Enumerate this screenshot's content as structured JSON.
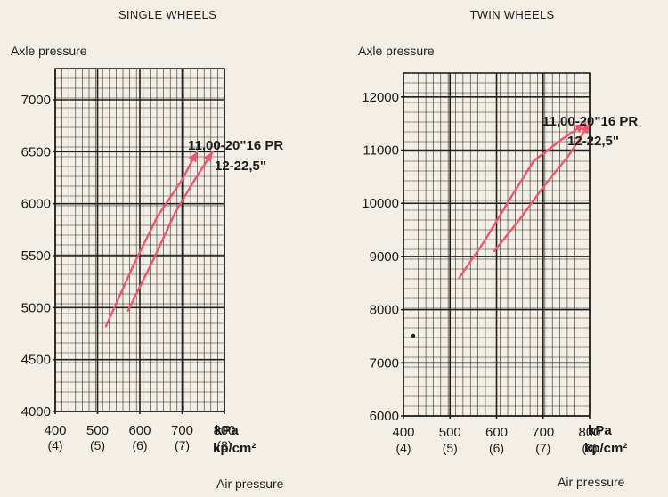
{
  "chart_data": [
    {
      "type": "line",
      "title": "SINGLE WHEELS",
      "ylabel": "Axle pressure",
      "xlabel": "Air pressure",
      "xlim": [
        400,
        800
      ],
      "ylim": [
        4000,
        7300
      ],
      "x_ticks": [
        "400",
        "500",
        "600",
        "700",
        "800"
      ],
      "x_ticks_secondary": [
        "(4)",
        "(5)",
        "(6)",
        "(7)",
        "(8)"
      ],
      "x_unit": "kPa",
      "x_unit_secondary": "kp/cm²",
      "y_ticks": [
        "4000",
        "4500",
        "5000",
        "5500",
        "6000",
        "6500",
        "7000"
      ],
      "grid": true,
      "series": [
        {
          "name": "11,00-20\"16 PR",
          "color": "#f0566a",
          "x": [
            520,
            585,
            642,
            700,
            735
          ],
          "y": [
            4820,
            5410,
            5880,
            6230,
            6500
          ]
        },
        {
          "name": "12-22,5\"",
          "color": "#f0566a",
          "x": [
            572,
            633,
            683,
            725,
            772
          ],
          "y": [
            4970,
            5470,
            5910,
            6200,
            6500
          ]
        }
      ]
    },
    {
      "type": "line",
      "title": "TWIN WHEELS",
      "ylabel": "Axle pressure",
      "xlabel": "Air pressure",
      "xlim": [
        400,
        800
      ],
      "ylim": [
        6000,
        12450
      ],
      "x_ticks": [
        "400",
        "500",
        "600",
        "700",
        "800"
      ],
      "x_ticks_secondary": [
        "(4)",
        "(5)",
        "(6)",
        "(7)",
        "(8)"
      ],
      "x_unit": "kPa",
      "x_unit_secondary": "kp/cm²",
      "y_ticks": [
        "6000",
        "7000",
        "8000",
        "9000",
        "10000",
        "11000",
        "12000"
      ],
      "grid": true,
      "series": [
        {
          "name": "11,00-20\"16 PR",
          "color": "#f0566a",
          "x": [
            520,
            575,
            630,
            680,
            740,
            790
          ],
          "y": [
            8600,
            9300,
            10100,
            10800,
            11200,
            11500
          ]
        },
        {
          "name": "12-22,5\"",
          "color": "#f0566a",
          "x": [
            595,
            650,
            700,
            755,
            800
          ],
          "y": [
            9100,
            9700,
            10300,
            10900,
            11500
          ]
        }
      ]
    }
  ]
}
